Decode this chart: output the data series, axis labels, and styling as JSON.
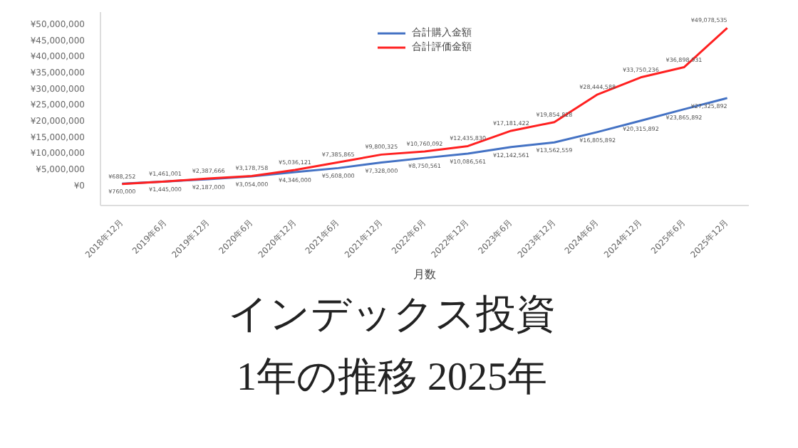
{
  "chart_data": {
    "type": "line",
    "title": "インデックス投資",
    "subtitle": "1年の推移 2025年",
    "xlabel": "月数",
    "categories": [
      "2018年12月",
      "2019年6月",
      "2019年12月",
      "2020年6月",
      "2020年12月",
      "2021年6月",
      "2021年12月",
      "2022年6月",
      "2022年12月",
      "2023年6月",
      "2023年12月",
      "2024年6月",
      "2024年12月",
      "2025年6月",
      "2025年12月"
    ],
    "series": [
      {
        "name": "合計購入金額",
        "color": "#4472c4",
        "values": [
          760000,
          1445000,
          2187000,
          3054000,
          4346000,
          5608000,
          7328000,
          8750561,
          10086561,
          12142561,
          13562559,
          16805892,
          20315892,
          23865892,
          27325892
        ],
        "value_labels": [
          "¥760,000",
          "¥1,445,000",
          "¥2,187,000",
          "¥3,054,000",
          "¥4,346,000",
          "¥5,608,000",
          "¥7,328,000",
          "¥8,750,561",
          "¥10,086,561",
          "¥12,142,561",
          "¥13,562,559",
          "¥16,805,892",
          "¥20,315,892",
          "¥23,865,892",
          "¥27,325,892"
        ]
      },
      {
        "name": "合計評価金額",
        "color": "#ff2020",
        "values": [
          688252,
          1461001,
          2387666,
          3178758,
          5036121,
          7385865,
          9800325,
          10760092,
          12435830,
          17181422,
          19854828,
          28444588,
          33750236,
          36898931,
          49078535
        ],
        "value_labels": [
          "¥688,252",
          "¥1,461,001",
          "¥2,387,666",
          "¥3,178,758",
          "¥5,036,121",
          "¥7,385,865",
          "¥9,800,325",
          "¥10,760,092",
          "¥12,435,830",
          "¥17,181,422",
          "¥19,854,828",
          "¥28,444,588",
          "¥33,750,236",
          "¥36,898,931",
          "¥49,078,535"
        ]
      }
    ],
    "ylim": [
      -6000000,
      54000000
    ],
    "yticks": [
      {
        "value": 0,
        "label": "¥0"
      },
      {
        "value": 5000000,
        "label": "¥5,000,000"
      },
      {
        "value": 10000000,
        "label": "¥10,000,000"
      },
      {
        "value": 15000000,
        "label": "¥15,000,000"
      },
      {
        "value": 20000000,
        "label": "¥20,000,000"
      },
      {
        "value": 25000000,
        "label": "¥25,000,000"
      },
      {
        "value": 30000000,
        "label": "¥30,000,000"
      },
      {
        "value": 35000000,
        "label": "¥35,000,000"
      },
      {
        "value": 40000000,
        "label": "¥40,000,000"
      },
      {
        "value": 45000000,
        "label": "¥45,000,000"
      },
      {
        "value": 50000000,
        "label": "¥50,000,000"
      }
    ],
    "legend": "top",
    "marker": "none",
    "line_style": "solid"
  }
}
